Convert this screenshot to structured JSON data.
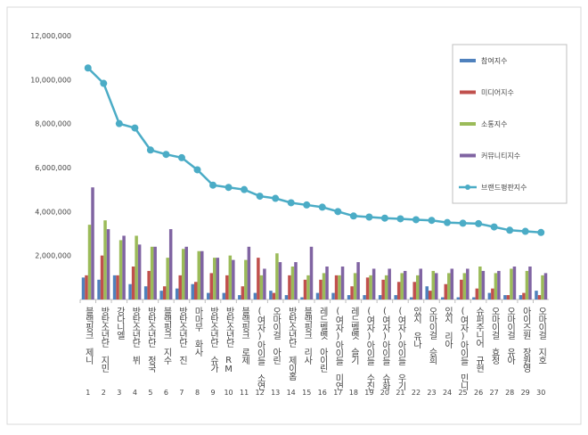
{
  "chart_data": {
    "type": "bar_line",
    "categories": [
      "블랙핑크 제니",
      "방탄소년단 지민",
      "강다니엘",
      "방탄소년단 뷔",
      "방탄소년단 정국",
      "블랙핑크 지수",
      "방탄소년단 진",
      "마마무 화사",
      "방탄소년단 슈가",
      "방탄소년단 RM",
      "블랙핑크 로제",
      "(여자)아이들 소연",
      "오마이걸 아린",
      "방탄소년단 제이홉",
      "블랙핑크 리사",
      "레드벨벳 아이린",
      "(여자)아이들 미연",
      "레드벨벳 슬기",
      "(여자)아이들 수진",
      "(여자)아이들 슈화",
      "(여자)아이들 우기",
      "있지 유나",
      "오마이걸 승희",
      "있지 리아",
      "(여자)아이들 민니",
      "슈퍼주니어 규현",
      "오마이걸 효정",
      "오마이걸 유아",
      "아이즈원 장원영",
      "오마이걸 지호"
    ],
    "ranks": [
      1,
      2,
      3,
      4,
      5,
      6,
      7,
      8,
      9,
      10,
      11,
      12,
      13,
      14,
      15,
      16,
      17,
      18,
      19,
      20,
      21,
      22,
      23,
      24,
      25,
      26,
      27,
      28,
      29,
      30
    ],
    "ylim": [
      0,
      12000000
    ],
    "yticks": [
      {
        "value": 2000000,
        "label": "2,000,000"
      },
      {
        "value": 4000000,
        "label": "4,000,000"
      },
      {
        "value": 6000000,
        "label": "6,000,000"
      },
      {
        "value": 8000000,
        "label": "8,000,000"
      },
      {
        "value": 10000000,
        "label": "10,000,000"
      },
      {
        "value": 12000000,
        "label": "12,000,000"
      }
    ],
    "series": [
      {
        "name": "참여지수",
        "color": "#4f81bd",
        "kind": "bar",
        "values": [
          1000000,
          900000,
          1100000,
          700000,
          600000,
          400000,
          500000,
          700000,
          300000,
          300000,
          200000,
          300000,
          400000,
          200000,
          100000,
          300000,
          300000,
          200000,
          200000,
          200000,
          200000,
          100000,
          600000,
          100000,
          100000,
          100000,
          300000,
          200000,
          200000,
          400000
        ]
      },
      {
        "name": "미디어지수",
        "color": "#c0504d",
        "kind": "bar",
        "values": [
          1100000,
          2000000,
          1100000,
          1500000,
          1300000,
          600000,
          1100000,
          800000,
          1200000,
          1100000,
          600000,
          1900000,
          300000,
          1100000,
          900000,
          900000,
          1100000,
          600000,
          1000000,
          900000,
          800000,
          800000,
          400000,
          700000,
          900000,
          500000,
          500000,
          200000,
          300000,
          200000
        ]
      },
      {
        "name": "소통지수",
        "color": "#9bbb59",
        "kind": "bar",
        "values": [
          3400000,
          3600000,
          2700000,
          2900000,
          2400000,
          1900000,
          2300000,
          2200000,
          1900000,
          2000000,
          1800000,
          1100000,
          2100000,
          1500000,
          1100000,
          1200000,
          1100000,
          1200000,
          1100000,
          1100000,
          1200000,
          1100000,
          1300000,
          1200000,
          1200000,
          1500000,
          1200000,
          1400000,
          1300000,
          1100000
        ]
      },
      {
        "name": "커뮤니티지수",
        "color": "#8064a2",
        "kind": "bar",
        "values": [
          5100000,
          3200000,
          2900000,
          2500000,
          2400000,
          3200000,
          2400000,
          2200000,
          1900000,
          1800000,
          2400000,
          1400000,
          1700000,
          1700000,
          2400000,
          1500000,
          1500000,
          1700000,
          1400000,
          1400000,
          1300000,
          1400000,
          1200000,
          1400000,
          1400000,
          1300000,
          1300000,
          1500000,
          1500000,
          1200000
        ]
      },
      {
        "name": "브랜드평판지수",
        "color": "#4bacc6",
        "kind": "line",
        "values": [
          10530000,
          9830000,
          8000000,
          7800000,
          6800000,
          6600000,
          6450000,
          5900000,
          5200000,
          5100000,
          5000000,
          4700000,
          4600000,
          4400000,
          4300000,
          4200000,
          4000000,
          3800000,
          3750000,
          3700000,
          3670000,
          3630000,
          3600000,
          3500000,
          3470000,
          3450000,
          3300000,
          3150000,
          3100000,
          3050000
        ]
      }
    ]
  }
}
